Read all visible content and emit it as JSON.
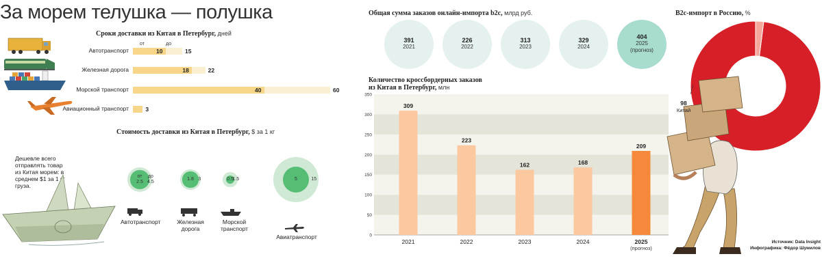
{
  "header": {
    "title": "За морем телушка — полушка"
  },
  "delivery_time": {
    "title": "Сроки доставки из Китая в Петербург,",
    "unit": "дней",
    "from_label": "от",
    "to_label": "до",
    "modes": [
      {
        "label": "Автотранспорт",
        "from": "10",
        "to": "15"
      },
      {
        "label": "Железная дорога",
        "from": "18",
        "to": "22"
      },
      {
        "label": "Морской транспорт",
        "from": "40",
        "to": "60"
      },
      {
        "label": "Авиационный транспорт",
        "from": "3",
        "to": ""
      }
    ],
    "colors": {
      "min": "#f7d68a",
      "max": "#fbefd2"
    }
  },
  "delivery_cost": {
    "title": "Стоимость доставки из Китая в Петербург,",
    "unit": "$ за 1 кг",
    "note": "Дешевле всего отправлять товар из Китая морем: в среднем $1 за 1 кг груза.",
    "modes": [
      {
        "label_line1": "Автотранспорт",
        "label_line2": "",
        "from_prefix": "от",
        "from": "2.5",
        "to_prefix": "до",
        "to": "4.5"
      },
      {
        "label_line1": "Железная",
        "label_line2": "дорога",
        "from_prefix": "",
        "from": "1.8",
        "to_prefix": "",
        "to": "3"
      },
      {
        "label_line1": "Морской",
        "label_line2": "транспорт",
        "from_prefix": "",
        "from": "0.5",
        "to_prefix": "",
        "to": "1.5"
      },
      {
        "label_line1": "Авиатранспорт",
        "label_line2": "",
        "from_prefix": "",
        "from": "5",
        "to_prefix": "",
        "to": "15"
      }
    ],
    "colors": {
      "min": "#56bd75",
      "max": "#cfe9d5"
    }
  },
  "online_import": {
    "title": "Общая сумма заказов онлайн-импорта b2c,",
    "unit": "млрд руб.",
    "items": [
      {
        "value": "391",
        "year": "2021",
        "note": ""
      },
      {
        "value": "226",
        "year": "2022",
        "note": ""
      },
      {
        "value": "313",
        "year": "2023",
        "note": ""
      },
      {
        "value": "329",
        "year": "2024",
        "note": ""
      },
      {
        "value": "404",
        "year": "2025",
        "note": "(прогноз)"
      }
    ],
    "colors": {
      "normal": "#e4f1ee",
      "forecast": "#a8dccf"
    }
  },
  "chart_data": [
    {
      "type": "bar",
      "title": "Количество кроссбордерных заказов из Китая в Петербург,",
      "title_line1": "Количество кроссбордерных заказов",
      "title_line2": "из Китая в Петербург,",
      "unit": "млн",
      "categories": [
        "2021",
        "2022",
        "2023",
        "2024",
        "2025"
      ],
      "category_notes": [
        "",
        "",
        "",
        "",
        "(прогноз)"
      ],
      "values": [
        309,
        223,
        162,
        168,
        209
      ],
      "ylim": [
        0,
        350
      ],
      "yticks": [
        0,
        50,
        100,
        150,
        200,
        250,
        300,
        350
      ],
      "grid": "alternating bands",
      "colors": {
        "bar": "#fbc8a0",
        "forecast": "#f5883a",
        "band_dark": "#e4e4d8",
        "band_light": "#f4f4ec"
      }
    },
    {
      "type": "pie",
      "title": "B2c-импорт в Россию,",
      "unit": "%",
      "slices": [
        {
          "name": "Китай",
          "value": 98,
          "color": "#d61f26"
        },
        {
          "name": "",
          "value": 2,
          "color": "#f4a79a"
        }
      ],
      "label": {
        "value": "98",
        "name": "Китай"
      }
    }
  ],
  "source": {
    "line1": "Источник: Data Insight",
    "line2": "Инфографика: Фёдор Шумилов"
  }
}
